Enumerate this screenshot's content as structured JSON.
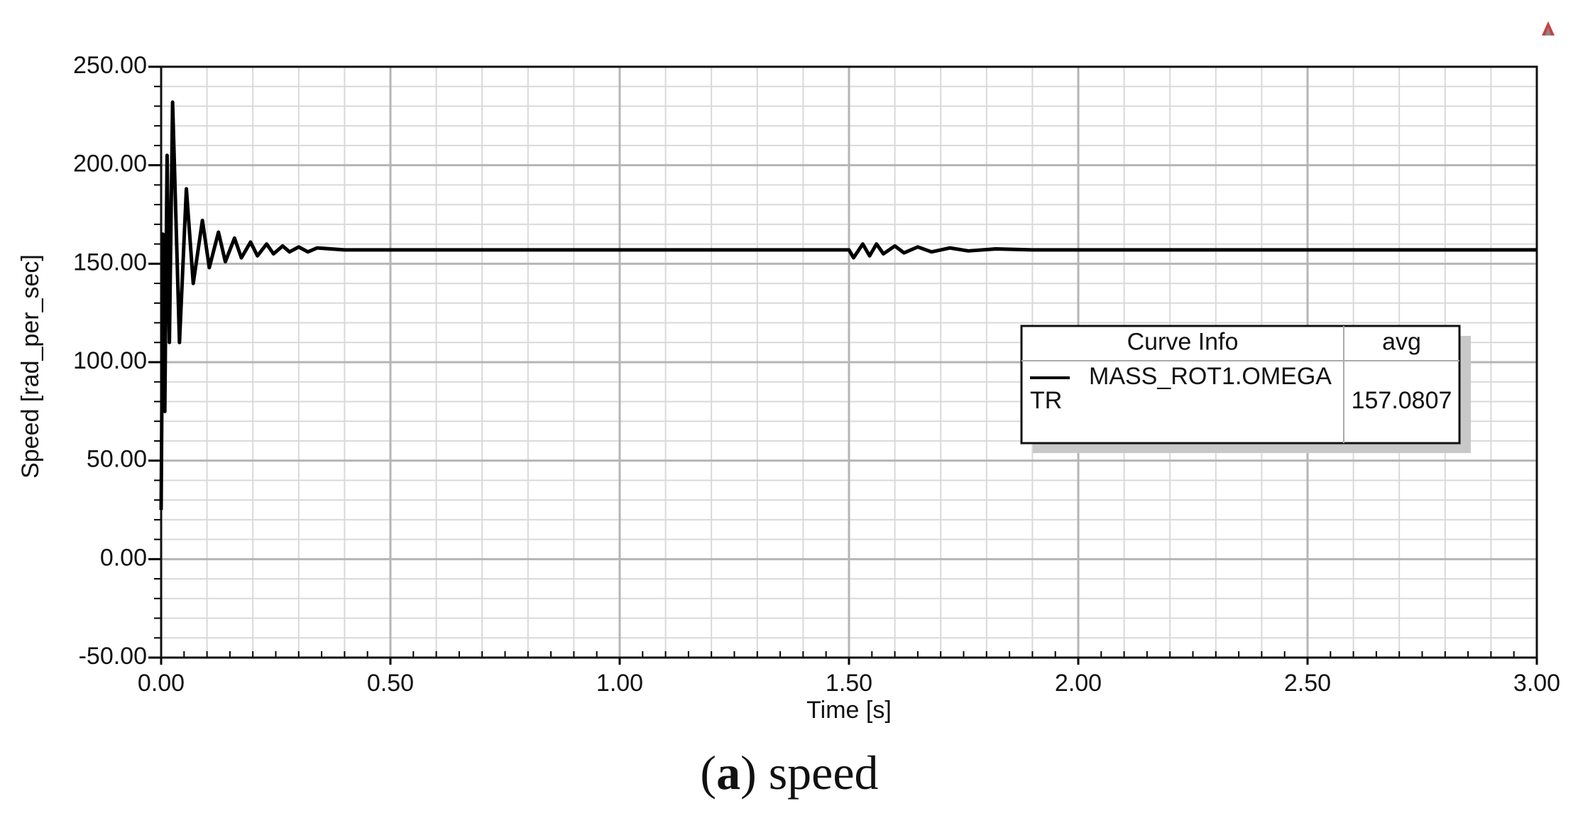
{
  "chart_data": {
    "type": "line",
    "xlabel": "Time [s]",
    "ylabel": "Speed [rad_per_sec]",
    "xlim": [
      0,
      3
    ],
    "ylim": [
      -50,
      250
    ],
    "xticks": [
      {
        "value": 0,
        "label": "0.00"
      },
      {
        "value": 0.5,
        "label": "0.50"
      },
      {
        "value": 1,
        "label": "1.00"
      },
      {
        "value": 1.5,
        "label": "1.50"
      },
      {
        "value": 2,
        "label": "2.00"
      },
      {
        "value": 2.5,
        "label": "2.50"
      },
      {
        "value": 3,
        "label": "3.00"
      }
    ],
    "yticks": [
      {
        "value": -50,
        "label": "-50.00"
      },
      {
        "value": 0,
        "label": "0.00"
      },
      {
        "value": 50,
        "label": "50.00"
      },
      {
        "value": 100,
        "label": "100.00"
      },
      {
        "value": 150,
        "label": "150.00"
      },
      {
        "value": 200,
        "label": "200.00"
      },
      {
        "value": 250,
        "label": "250.00"
      }
    ],
    "grid": true,
    "x": [
      0,
      0.004,
      0.008,
      0.013,
      0.018,
      0.025,
      0.04,
      0.055,
      0.07,
      0.09,
      0.105,
      0.125,
      0.14,
      0.16,
      0.175,
      0.195,
      0.21,
      0.23,
      0.245,
      0.265,
      0.28,
      0.3,
      0.32,
      0.34,
      0.4,
      1.5,
      1.51,
      1.53,
      1.545,
      1.56,
      1.575,
      1.6,
      1.62,
      1.65,
      1.68,
      1.72,
      1.76,
      1.82,
      1.9,
      3
    ],
    "series": [
      {
        "name": "MASS_ROT1.OMEGA",
        "tag": "TR",
        "avg": 157.0807,
        "color": "#000000",
        "values": [
          25,
          165,
          75,
          205,
          110,
          232,
          110,
          188,
          140,
          172,
          148,
          166,
          151,
          163,
          153,
          161,
          154,
          160,
          155,
          159,
          156,
          158.5,
          156,
          158,
          157,
          157,
          153,
          160,
          154,
          160,
          155,
          159,
          155.5,
          158.5,
          156,
          158,
          156.5,
          157.5,
          157,
          157
        ]
      }
    ],
    "legend": {
      "header": [
        "Curve Info",
        "avg"
      ]
    },
    "caption": [
      "(",
      "a",
      ") speed"
    ]
  }
}
